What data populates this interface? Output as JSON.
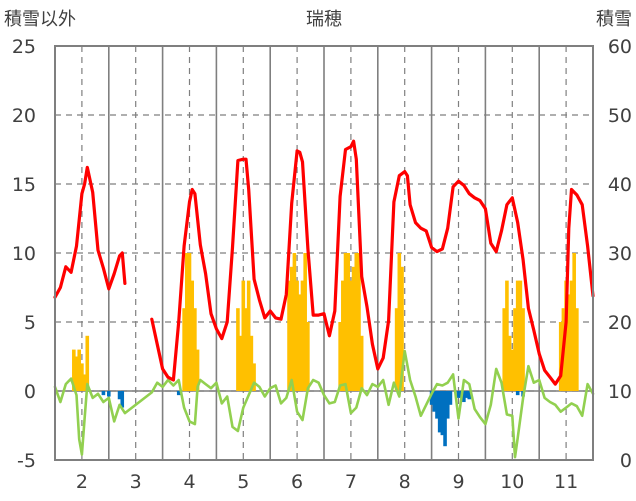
{
  "chart_data": {
    "type": "line",
    "title": "瑞穂",
    "left_axis_label": "積雪以外",
    "right_axis_label": "積雪",
    "x_tick_labels": [
      "2",
      "3",
      "4",
      "5",
      "6",
      "7",
      "8",
      "9",
      "10",
      "11"
    ],
    "x_range": [
      1.5,
      11.5
    ],
    "y_left_range": [
      -5,
      25
    ],
    "y_left_ticks": [
      "25",
      "20",
      "15",
      "10",
      "5",
      "0",
      "-5"
    ],
    "y_right_range": [
      0,
      60
    ],
    "y_right_ticks": [
      "60",
      "50",
      "40",
      "30",
      "20",
      "10",
      "0"
    ],
    "grid": "dashed",
    "colors": {
      "red_line": "#ff0000",
      "green_line": "#92d050",
      "orange_bars": "#ffc000",
      "blue_bars": "#0070c0",
      "axis": "#7f7f7f",
      "grid": "#7f7f7f"
    },
    "series": [
      {
        "axis": "left",
        "kind": "line",
        "color": "#ff0000",
        "x": [
          1.5,
          1.6,
          1.7,
          1.8,
          1.9,
          2.0,
          2.05,
          2.1,
          2.2,
          2.3,
          2.4,
          2.5,
          2.6,
          2.7,
          2.75,
          2.8
        ],
        "y": [
          6.8,
          7.5,
          9.0,
          8.6,
          10.5,
          14.3,
          15.0,
          16.2,
          14.4,
          10.2,
          8.9,
          7.4,
          8.5,
          9.8,
          10.0,
          7.8
        ]
      },
      {
        "axis": "left",
        "kind": "line",
        "color": "#ff0000",
        "x": [
          3.3,
          3.4,
          3.5,
          3.6,
          3.7,
          3.8,
          3.9,
          4.0,
          4.05,
          4.1,
          4.2,
          4.3,
          4.4,
          4.5,
          4.6,
          4.7,
          4.8,
          4.9,
          5.0,
          5.05,
          5.1,
          5.2,
          5.3,
          5.4,
          5.5,
          5.6,
          5.7,
          5.8,
          5.9,
          6.0,
          6.05,
          6.1,
          6.2,
          6.3,
          6.4,
          6.5,
          6.6,
          6.7,
          6.8,
          6.9,
          7.0,
          7.05,
          7.1,
          7.2,
          7.3,
          7.4,
          7.5,
          7.6,
          7.7,
          7.8,
          7.9,
          8.0,
          8.05,
          8.1,
          8.2,
          8.3,
          8.4,
          8.5,
          8.6,
          8.7,
          8.8,
          8.9,
          9.0,
          9.1,
          9.2,
          9.3,
          9.4,
          9.5,
          9.6,
          9.7,
          9.8,
          9.9,
          10.0,
          10.1,
          10.2,
          10.3,
          10.4,
          10.5,
          10.6,
          10.7,
          10.8,
          10.9,
          11.0,
          11.05,
          11.1,
          11.2,
          11.3,
          11.4,
          11.5
        ],
        "y": [
          5.2,
          3.4,
          1.6,
          1.0,
          0.8,
          5.0,
          10.5,
          13.7,
          14.6,
          14.3,
          10.6,
          8.5,
          5.6,
          4.5,
          3.8,
          5.0,
          10.4,
          16.7,
          16.8,
          16.8,
          14.6,
          8.1,
          6.6,
          5.3,
          5.8,
          5.3,
          5.2,
          7.0,
          13.6,
          17.4,
          17.3,
          16.6,
          10.3,
          5.5,
          5.5,
          5.6,
          4.0,
          5.8,
          14.1,
          17.5,
          17.7,
          18.1,
          16.8,
          8.3,
          6.1,
          3.4,
          1.6,
          2.4,
          5.1,
          13.7,
          15.6,
          15.9,
          15.6,
          13.5,
          12.2,
          11.8,
          11.6,
          10.4,
          10.1,
          10.3,
          11.8,
          14.8,
          15.2,
          14.9,
          14.3,
          14.0,
          13.8,
          13.2,
          10.7,
          10.1,
          11.6,
          13.5,
          14.0,
          12.2,
          9.5,
          6.0,
          4.4,
          2.7,
          1.5,
          1.0,
          0.5,
          1.1,
          5.0,
          11.8,
          14.6,
          14.2,
          13.5,
          10.5,
          6.9
        ]
      },
      {
        "axis": "left",
        "kind": "line",
        "color": "#92d050",
        "x": [
          1.5,
          1.6,
          1.7,
          1.8,
          1.9,
          1.95,
          2.0,
          2.05,
          2.1,
          2.2,
          2.3,
          2.4,
          2.5,
          2.6,
          2.7,
          2.8,
          3.3,
          3.4,
          3.5,
          3.6,
          3.7,
          3.8,
          3.9,
          4.0,
          4.1,
          4.15,
          4.2,
          4.3,
          4.4,
          4.5,
          4.6,
          4.7,
          4.8,
          4.9,
          5.0,
          5.1,
          5.2,
          5.3,
          5.4,
          5.5,
          5.6,
          5.7,
          5.8,
          5.9,
          6.0,
          6.1,
          6.2,
          6.3,
          6.4,
          6.5,
          6.6,
          6.7,
          6.8,
          6.9,
          7.0,
          7.1,
          7.2,
          7.3,
          7.4,
          7.5,
          7.6,
          7.7,
          7.8,
          7.9,
          8.0,
          8.1,
          8.2,
          8.3,
          8.4,
          8.5,
          8.6,
          8.7,
          8.8,
          8.9,
          9.0,
          9.1,
          9.2,
          9.3,
          9.4,
          9.5,
          9.6,
          9.7,
          9.8,
          9.9,
          10.0,
          10.05,
          10.1,
          10.2,
          10.3,
          10.4,
          10.5,
          10.6,
          10.7,
          10.8,
          10.9,
          11.0,
          11.1,
          11.2,
          11.3,
          11.4,
          11.5
        ],
        "y": [
          0.3,
          -0.8,
          0.5,
          0.9,
          -0.3,
          -3.5,
          -4.6,
          -2.0,
          0.5,
          -0.5,
          -0.2,
          -0.8,
          -0.5,
          -2.2,
          -1.0,
          -1.6,
          -0.1,
          0.6,
          0.3,
          0.8,
          0.4,
          0.8,
          -1.2,
          -2.2,
          -2.4,
          0.3,
          0.8,
          0.5,
          0.2,
          0.6,
          -0.9,
          -0.4,
          -2.6,
          -2.9,
          -1.2,
          -0.3,
          0.6,
          0.3,
          -0.4,
          0.2,
          0.4,
          -0.9,
          -0.5,
          0.8,
          -1.5,
          -2.1,
          0.2,
          0.8,
          0.6,
          -0.3,
          -0.9,
          -0.8,
          0.4,
          0.5,
          -1.6,
          -1.2,
          0.2,
          -0.3,
          0.5,
          0.3,
          0.8,
          -1.0,
          0.6,
          -0.4,
          2.9,
          0.8,
          -0.4,
          -1.8,
          -1.0,
          -0.2,
          0.5,
          0.4,
          0.6,
          1.2,
          -2.0,
          0.8,
          0.5,
          -1.3,
          -1.9,
          -2.4,
          -1.0,
          1.6,
          0.6,
          -1.7,
          -1.8,
          -4.8,
          -3.4,
          -0.5,
          1.8,
          0.6,
          0.8,
          -0.5,
          -0.8,
          -1.0,
          -1.5,
          -1.2,
          -0.9,
          -1.1,
          -1.8,
          0.5,
          -0.2
        ]
      },
      {
        "axis": "left",
        "kind": "bar",
        "color": "#ffc000",
        "x": [
          1.85,
          1.9,
          1.95,
          2.0,
          2.05,
          2.1,
          3.9,
          3.95,
          4.0,
          4.05,
          4.1,
          4.15,
          4.9,
          4.95,
          5.0,
          5.05,
          5.1,
          5.15,
          5.2,
          5.85,
          5.9,
          5.95,
          6.0,
          6.05,
          6.1,
          6.15,
          6.2,
          6.8,
          6.85,
          6.9,
          6.95,
          7.0,
          7.05,
          7.1,
          7.15,
          7.2,
          7.85,
          7.9,
          7.95,
          9.85,
          9.9,
          9.95,
          10.0,
          10.05,
          10.1,
          10.15,
          10.2,
          10.9,
          10.95,
          11.0,
          11.05,
          11.1,
          11.15,
          11.2
        ],
        "y": [
          3.0,
          2.5,
          3.0,
          2.0,
          1.2,
          4.0,
          6.0,
          10.0,
          10.0,
          8.0,
          6.0,
          3.0,
          6.0,
          4.0,
          8.0,
          6.0,
          8.0,
          4.0,
          2.0,
          8.0,
          9.0,
          10.0,
          8.0,
          7.0,
          8.0,
          10.0,
          5.0,
          5.0,
          8.0,
          10.0,
          10.0,
          8.0,
          9.0,
          10.0,
          10.0,
          4.0,
          6.0,
          10.0,
          9.0,
          6.0,
          8.0,
          4.0,
          3.0,
          6.0,
          8.0,
          8.0,
          6.0,
          5.0,
          6.0,
          8.0,
          7.0,
          8.0,
          10.0,
          6.0
        ]
      },
      {
        "axis": "left",
        "kind": "bar",
        "color": "#0070c0",
        "x": [
          2.4,
          2.5,
          2.7,
          2.75,
          3.8,
          8.5,
          8.55,
          8.6,
          8.65,
          8.7,
          8.75,
          8.8,
          8.85,
          9.0,
          9.05,
          9.1,
          9.15,
          9.2,
          10.1,
          10.2
        ],
        "y": [
          -0.3,
          -0.4,
          -0.6,
          -1.2,
          -0.3,
          -1.0,
          -1.5,
          -2.0,
          -3.0,
          -3.2,
          -4.0,
          -2.0,
          -1.0,
          -0.5,
          -0.5,
          -0.8,
          -0.5,
          -0.6,
          -0.3,
          -0.4
        ]
      }
    ]
  }
}
